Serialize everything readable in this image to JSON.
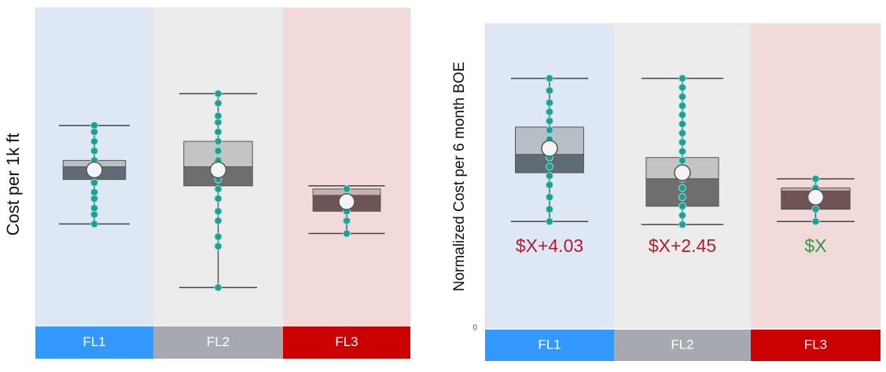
{
  "chart_data": [
    {
      "type": "box",
      "y_label": "Cost per 1k ft",
      "categories": [
        "FL1",
        "FL2",
        "FL3"
      ],
      "band_colors": [
        "#dde8f4",
        "#ececec",
        "#f2dada"
      ],
      "label_colors": [
        "#3399ff",
        "#a6aab0",
        "#cc0000"
      ],
      "upper_colors": [
        "#b8bec6",
        "#c4c4c4",
        "#c9b0b2"
      ],
      "lower_colors": [
        "#5f6b76",
        "#6e6e6e",
        "#6e5455"
      ],
      "point_color": "#1f9e93",
      "ylim": [
        0,
        100
      ],
      "boxes": [
        {
          "min": 32,
          "q1": 46,
          "median": 50,
          "q3": 52,
          "max": 63,
          "mean": 49,
          "points": [
            32,
            35,
            37,
            40,
            42,
            45,
            48,
            52,
            55,
            58,
            61,
            63
          ]
        },
        {
          "min": 12,
          "q1": 44,
          "median": 50,
          "q3": 58,
          "max": 73,
          "mean": 49,
          "points": [
            12,
            25,
            28,
            33,
            36,
            40,
            43,
            46,
            52,
            55,
            58,
            61,
            64,
            66,
            70,
            73
          ]
        },
        {
          "min": 29,
          "q1": 36,
          "median": 41,
          "q3": 43,
          "max": 44,
          "mean": 39,
          "points": [
            29,
            33,
            36,
            40,
            43
          ]
        }
      ]
    },
    {
      "type": "box",
      "y_label": "Normalized Cost per 6 month BOE",
      "categories": [
        "FL1",
        "FL2",
        "FL3"
      ],
      "band_colors": [
        "#dde8f4",
        "#ececec",
        "#f2dada"
      ],
      "label_colors": [
        "#3399ff",
        "#a6aab0",
        "#cc0000"
      ],
      "upper_colors": [
        "#b8bec6",
        "#c4c4c4",
        "#c9b0b2"
      ],
      "lower_colors": [
        "#5f6b76",
        "#6e6e6e",
        "#6e5455"
      ],
      "point_color": "#1f9e93",
      "ylim": [
        0,
        100
      ],
      "yticks": [
        0
      ],
      "boxes": [
        {
          "min": 35,
          "q1": 51,
          "median": 57,
          "q3": 66,
          "max": 82,
          "mean": 59,
          "points": [
            35,
            39,
            43,
            47,
            50,
            53,
            56,
            59,
            62,
            65,
            68,
            71,
            74,
            78,
            82
          ]
        },
        {
          "min": 34,
          "q1": 40,
          "median": 49,
          "q3": 56,
          "max": 82,
          "mean": 51,
          "points": [
            34,
            37,
            40,
            43,
            46,
            49,
            52,
            55,
            58,
            61,
            64,
            67,
            70,
            73,
            76,
            79,
            82
          ]
        },
        {
          "min": 35,
          "q1": 39,
          "median": 45,
          "q3": 46,
          "max": 49,
          "mean": 43,
          "points": [
            35,
            39,
            43,
            46,
            49
          ]
        }
      ],
      "annotations": [
        {
          "text": "$X+4.03",
          "color": "#b01c2e"
        },
        {
          "text": "$X+2.45",
          "color": "#b01c2e"
        },
        {
          "text": "$X",
          "color": "#2e9a3e"
        }
      ]
    }
  ]
}
